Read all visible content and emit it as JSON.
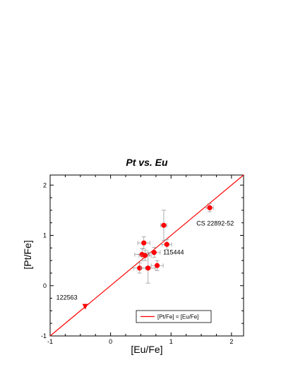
{
  "chart_data": {
    "type": "scatter",
    "title": "Pt vs. Eu",
    "xlabel": "[Eu/Fe]",
    "ylabel": "[Pt/Fe]",
    "xlim": [
      -1,
      2.2
    ],
    "ylim": [
      -1,
      2.2
    ],
    "xticks": [
      -1,
      0,
      1,
      2
    ],
    "yticks": [
      -1,
      0,
      1,
      2
    ],
    "grid": false,
    "legend_position": "bottom-right",
    "colors": {
      "points": "#ff0000",
      "line": "#ff0000",
      "errorbar": "#999999",
      "axes": "#000000"
    },
    "series": [
      {
        "type": "scatter",
        "marker": "circle",
        "points": [
          {
            "x": 1.64,
            "y": 1.55,
            "xerr": 0.06,
            "yerr": 0.08
          },
          {
            "x": 0.88,
            "y": 1.2,
            "xerr": 0.05,
            "yerr": 0.3
          },
          {
            "x": 0.55,
            "y": 0.85,
            "xerr": 0.1,
            "yerr": 0.12
          },
          {
            "x": 0.93,
            "y": 0.82,
            "xerr": 0.08,
            "yerr": 0.1
          },
          {
            "x": 0.72,
            "y": 0.66,
            "xerr": 0.1,
            "yerr": 0.1
          },
          {
            "x": 0.52,
            "y": 0.62,
            "xerr": 0.12,
            "yerr": 0.12
          },
          {
            "x": 0.57,
            "y": 0.6,
            "xerr": 0.1,
            "yerr": 0.1
          },
          {
            "x": 0.48,
            "y": 0.35,
            "xerr": 0.1,
            "yerr": 0.1
          },
          {
            "x": 0.62,
            "y": 0.35,
            "xerr": 0.12,
            "yerr": 0.3
          },
          {
            "x": 0.77,
            "y": 0.4,
            "xerr": 0.1,
            "yerr": 0.1
          }
        ]
      },
      {
        "type": "scatter",
        "marker": "triangle-down",
        "points": [
          {
            "x": -0.42,
            "y": -0.42
          }
        ]
      },
      {
        "type": "line",
        "name": "[Pt/Fe] = [Eu/Fe]",
        "x": [
          -1,
          2.2
        ],
        "y": [
          -1,
          2.2
        ]
      }
    ],
    "annotations": [
      {
        "text": "CS 22892-52",
        "x": 1.42,
        "y": 1.2
      },
      {
        "text": "115444",
        "x": 0.87,
        "y": 0.62
      },
      {
        "text": "122563",
        "x": -0.9,
        "y": -0.28
      }
    ]
  }
}
